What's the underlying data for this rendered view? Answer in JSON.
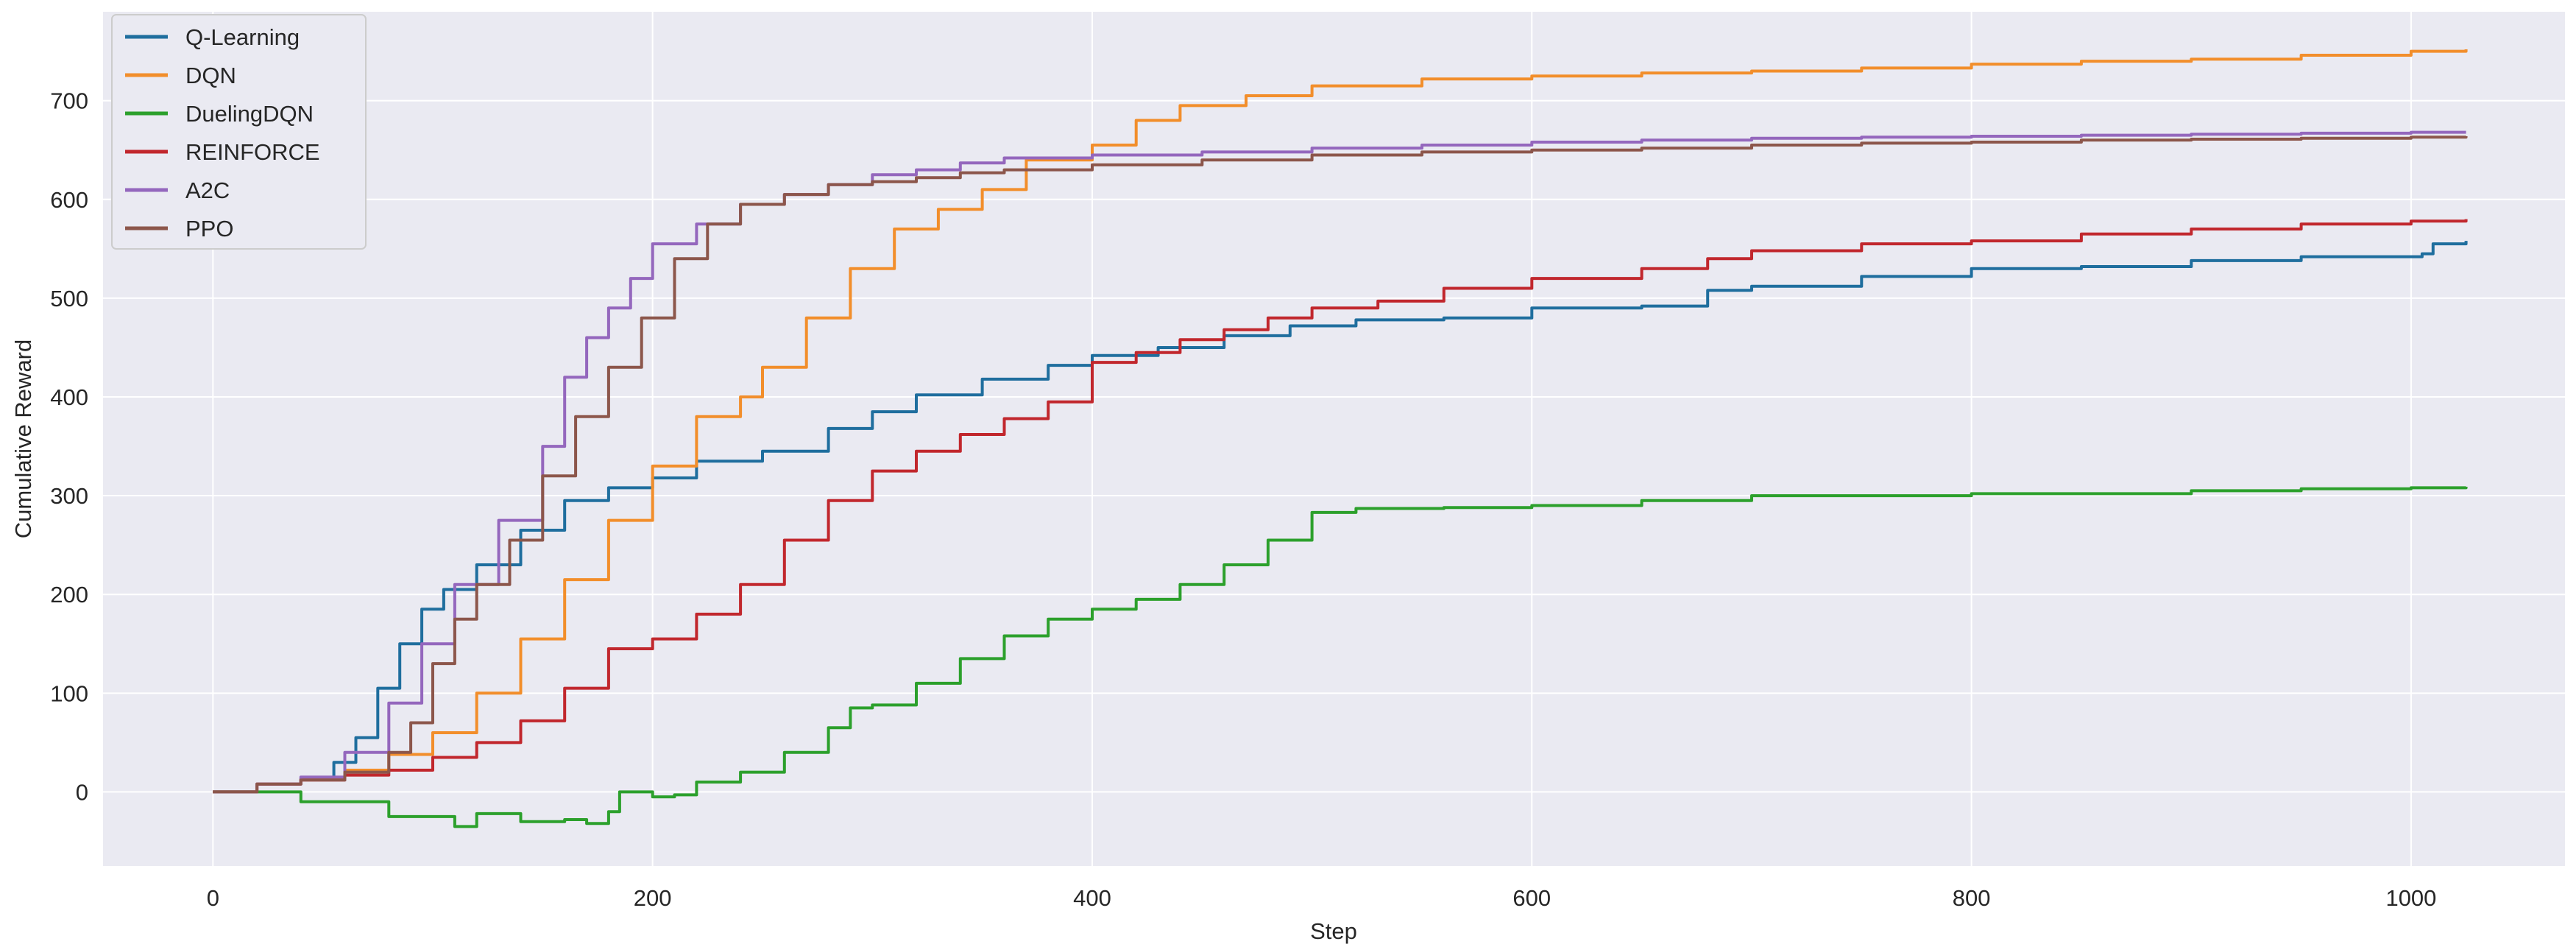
{
  "chart_data": {
    "type": "line",
    "title": "",
    "xlabel": "Step",
    "ylabel": "Cumulative Reward",
    "xlim": [
      -50,
      1070
    ],
    "ylim": [
      -75,
      790
    ],
    "xticks": [
      0,
      200,
      400,
      600,
      800,
      1000
    ],
    "yticks": [
      0,
      100,
      200,
      300,
      400,
      500,
      600,
      700
    ],
    "xtick_labels": [
      "0",
      "200",
      "400",
      "600",
      "800",
      "1000"
    ],
    "ytick_labels": [
      "0",
      "100",
      "200",
      "300",
      "400",
      "500",
      "600",
      "700"
    ],
    "grid": true,
    "legend_position": "top-left",
    "background": "#eaeaf2",
    "series": [
      {
        "name": "Q-Learning",
        "color": "#1f6e9e",
        "points": [
          [
            0,
            0
          ],
          [
            20,
            8
          ],
          [
            40,
            13
          ],
          [
            55,
            30
          ],
          [
            65,
            55
          ],
          [
            75,
            105
          ],
          [
            85,
            150
          ],
          [
            95,
            185
          ],
          [
            105,
            205
          ],
          [
            120,
            230
          ],
          [
            140,
            265
          ],
          [
            160,
            295
          ],
          [
            180,
            308
          ],
          [
            200,
            318
          ],
          [
            220,
            335
          ],
          [
            250,
            345
          ],
          [
            280,
            368
          ],
          [
            300,
            385
          ],
          [
            320,
            402
          ],
          [
            350,
            418
          ],
          [
            380,
            432
          ],
          [
            400,
            442
          ],
          [
            430,
            450
          ],
          [
            460,
            462
          ],
          [
            490,
            472
          ],
          [
            520,
            478
          ],
          [
            560,
            480
          ],
          [
            600,
            490
          ],
          [
            650,
            492
          ],
          [
            680,
            508
          ],
          [
            700,
            512
          ],
          [
            750,
            522
          ],
          [
            800,
            530
          ],
          [
            850,
            532
          ],
          [
            900,
            538
          ],
          [
            950,
            542
          ],
          [
            1005,
            545
          ],
          [
            1010,
            555
          ],
          [
            1025,
            558
          ]
        ]
      },
      {
        "name": "DQN",
        "color": "#f28e2b",
        "points": [
          [
            0,
            0
          ],
          [
            20,
            8
          ],
          [
            40,
            13
          ],
          [
            60,
            22
          ],
          [
            80,
            38
          ],
          [
            100,
            60
          ],
          [
            120,
            100
          ],
          [
            140,
            155
          ],
          [
            160,
            215
          ],
          [
            180,
            275
          ],
          [
            200,
            330
          ],
          [
            220,
            380
          ],
          [
            240,
            400
          ],
          [
            250,
            430
          ],
          [
            270,
            480
          ],
          [
            290,
            530
          ],
          [
            310,
            570
          ],
          [
            330,
            590
          ],
          [
            350,
            610
          ],
          [
            370,
            640
          ],
          [
            390,
            640
          ],
          [
            400,
            655
          ],
          [
            420,
            680
          ],
          [
            440,
            695
          ],
          [
            470,
            705
          ],
          [
            500,
            715
          ],
          [
            550,
            722
          ],
          [
            600,
            725
          ],
          [
            650,
            728
          ],
          [
            700,
            730
          ],
          [
            750,
            733
          ],
          [
            800,
            737
          ],
          [
            850,
            740
          ],
          [
            900,
            742
          ],
          [
            950,
            746
          ],
          [
            1000,
            750
          ],
          [
            1025,
            752
          ]
        ]
      },
      {
        "name": "DuelingDQN",
        "color": "#2ca02c",
        "points": [
          [
            0,
            0
          ],
          [
            40,
            -10
          ],
          [
            80,
            -25
          ],
          [
            110,
            -35
          ],
          [
            120,
            -22
          ],
          [
            140,
            -30
          ],
          [
            160,
            -28
          ],
          [
            170,
            -32
          ],
          [
            180,
            -20
          ],
          [
            185,
            0
          ],
          [
            200,
            -5
          ],
          [
            210,
            -3
          ],
          [
            220,
            10
          ],
          [
            240,
            20
          ],
          [
            260,
            40
          ],
          [
            280,
            65
          ],
          [
            290,
            85
          ],
          [
            300,
            88
          ],
          [
            320,
            110
          ],
          [
            340,
            135
          ],
          [
            360,
            158
          ],
          [
            380,
            175
          ],
          [
            400,
            185
          ],
          [
            420,
            195
          ],
          [
            440,
            210
          ],
          [
            460,
            230
          ],
          [
            480,
            255
          ],
          [
            500,
            283
          ],
          [
            520,
            287
          ],
          [
            560,
            288
          ],
          [
            600,
            290
          ],
          [
            650,
            295
          ],
          [
            700,
            300
          ],
          [
            800,
            302
          ],
          [
            900,
            305
          ],
          [
            950,
            307
          ],
          [
            1000,
            308
          ],
          [
            1025,
            309
          ]
        ]
      },
      {
        "name": "REINFORCE",
        "color": "#c1272d",
        "points": [
          [
            0,
            0
          ],
          [
            20,
            8
          ],
          [
            40,
            12
          ],
          [
            60,
            17
          ],
          [
            80,
            22
          ],
          [
            100,
            35
          ],
          [
            120,
            50
          ],
          [
            140,
            72
          ],
          [
            160,
            105
          ],
          [
            180,
            145
          ],
          [
            200,
            155
          ],
          [
            220,
            180
          ],
          [
            240,
            210
          ],
          [
            260,
            255
          ],
          [
            280,
            295
          ],
          [
            300,
            325
          ],
          [
            320,
            345
          ],
          [
            340,
            362
          ],
          [
            360,
            378
          ],
          [
            380,
            395
          ],
          [
            400,
            435
          ],
          [
            420,
            445
          ],
          [
            440,
            458
          ],
          [
            460,
            468
          ],
          [
            480,
            480
          ],
          [
            500,
            490
          ],
          [
            530,
            497
          ],
          [
            560,
            510
          ],
          [
            600,
            520
          ],
          [
            650,
            530
          ],
          [
            680,
            540
          ],
          [
            700,
            548
          ],
          [
            750,
            555
          ],
          [
            800,
            558
          ],
          [
            850,
            565
          ],
          [
            900,
            570
          ],
          [
            950,
            575
          ],
          [
            1000,
            578
          ],
          [
            1025,
            580
          ]
        ]
      },
      {
        "name": "A2C",
        "color": "#9467bd",
        "points": [
          [
            0,
            0
          ],
          [
            20,
            8
          ],
          [
            40,
            15
          ],
          [
            60,
            40
          ],
          [
            80,
            90
          ],
          [
            95,
            150
          ],
          [
            110,
            210
          ],
          [
            130,
            275
          ],
          [
            150,
            350
          ],
          [
            160,
            420
          ],
          [
            170,
            460
          ],
          [
            180,
            490
          ],
          [
            190,
            520
          ],
          [
            200,
            555
          ],
          [
            220,
            575
          ],
          [
            240,
            595
          ],
          [
            260,
            605
          ],
          [
            280,
            615
          ],
          [
            300,
            625
          ],
          [
            320,
            630
          ],
          [
            340,
            637
          ],
          [
            360,
            642
          ],
          [
            400,
            645
          ],
          [
            450,
            648
          ],
          [
            500,
            652
          ],
          [
            550,
            655
          ],
          [
            600,
            658
          ],
          [
            650,
            660
          ],
          [
            700,
            662
          ],
          [
            750,
            663
          ],
          [
            800,
            664
          ],
          [
            850,
            665
          ],
          [
            900,
            666
          ],
          [
            950,
            667
          ],
          [
            1000,
            668
          ],
          [
            1025,
            668
          ]
        ]
      },
      {
        "name": "PPO",
        "color": "#8c564b",
        "points": [
          [
            0,
            0
          ],
          [
            20,
            8
          ],
          [
            40,
            12
          ],
          [
            60,
            20
          ],
          [
            80,
            40
          ],
          [
            90,
            70
          ],
          [
            100,
            130
          ],
          [
            110,
            175
          ],
          [
            120,
            210
          ],
          [
            135,
            255
          ],
          [
            150,
            320
          ],
          [
            165,
            380
          ],
          [
            180,
            430
          ],
          [
            195,
            480
          ],
          [
            210,
            540
          ],
          [
            225,
            575
          ],
          [
            240,
            595
          ],
          [
            260,
            605
          ],
          [
            280,
            615
          ],
          [
            300,
            618
          ],
          [
            320,
            622
          ],
          [
            340,
            627
          ],
          [
            360,
            630
          ],
          [
            400,
            635
          ],
          [
            450,
            640
          ],
          [
            500,
            645
          ],
          [
            550,
            648
          ],
          [
            600,
            650
          ],
          [
            650,
            652
          ],
          [
            700,
            655
          ],
          [
            750,
            657
          ],
          [
            800,
            658
          ],
          [
            850,
            660
          ],
          [
            900,
            661
          ],
          [
            950,
            662
          ],
          [
            1000,
            663
          ],
          [
            1025,
            664
          ]
        ]
      }
    ]
  }
}
